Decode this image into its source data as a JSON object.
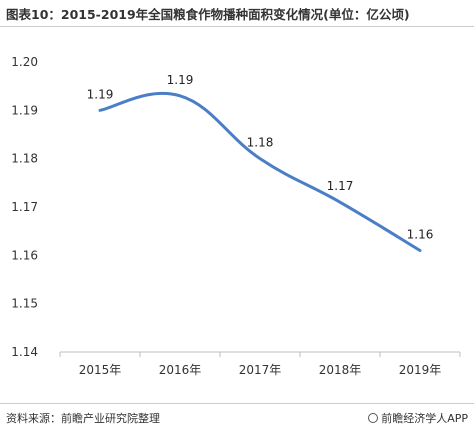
{
  "header": {
    "title": "图表10：2015-2019年全国粮食作物播种面积变化情况(单位：亿公顷)"
  },
  "footer": {
    "source": "资料来源：前瞻产业研究院整理",
    "brand": "前瞻经济学人APP"
  },
  "colors": {
    "line": "#4a7ec7",
    "axis": "#bfbfbf"
  },
  "chart_data": {
    "type": "line",
    "title": "图表10：2015-2019年全国粮食作物播种面积变化情况(单位：亿公顷)",
    "xlabel": "",
    "ylabel": "",
    "categories": [
      "2015年",
      "2016年",
      "2017年",
      "2018年",
      "2019年"
    ],
    "values": [
      1.19,
      1.193,
      1.18,
      1.171,
      1.161
    ],
    "data_labels": [
      "1.19",
      "1.19",
      "1.18",
      "1.17",
      "1.16"
    ],
    "y_ticks": [
      "1.20",
      "1.19",
      "1.18",
      "1.17",
      "1.16",
      "1.15",
      "1.14"
    ],
    "ylim": [
      1.14,
      1.2
    ],
    "smooth": true,
    "grid": false,
    "legend": "none"
  }
}
